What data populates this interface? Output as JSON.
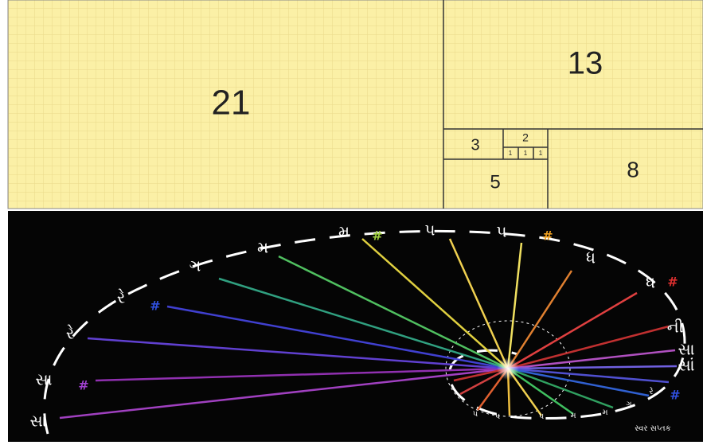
{
  "fibonacci": {
    "squares": [
      "21",
      "13",
      "8",
      "5",
      "3",
      "2",
      "1",
      "1",
      "1"
    ]
  },
  "notes": {
    "outer": [
      "સા",
      "સા",
      "રે",
      "રે",
      "ગ",
      "મ",
      "મ",
      "પ",
      "પ",
      "ધ",
      "ધ",
      "ની",
      "સા",
      "સાં"
    ],
    "sharps": [
      "#",
      "#",
      "#",
      "#",
      "#",
      "#"
    ],
    "inner": [
      "પ",
      "પ",
      "પ",
      "મ",
      "મ",
      "ગ",
      "રે"
    ],
    "caption": "સ્વર સપ્તક"
  }
}
